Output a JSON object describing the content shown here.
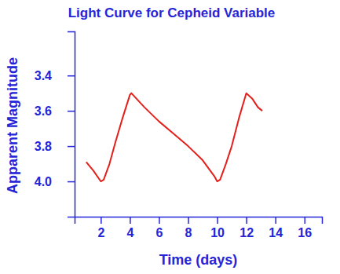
{
  "chart_data": {
    "type": "line",
    "title": "Light Curve for Cepheid Variable",
    "x_label": "Time (days)",
    "y_label": "Apparent Magnitude",
    "x": [
      1.0,
      1.5,
      2.0,
      2.2,
      2.6,
      3.0,
      3.5,
      4.0,
      4.1,
      5.0,
      6.0,
      7.0,
      8.0,
      9.0,
      9.8,
      10.0,
      10.2,
      10.6,
      11.0,
      11.5,
      12.0,
      12.4,
      12.8,
      13.1
    ],
    "values": [
      3.89,
      3.94,
      4.0,
      3.99,
      3.9,
      3.78,
      3.64,
      3.51,
      3.5,
      3.58,
      3.66,
      3.73,
      3.8,
      3.88,
      3.97,
      4.0,
      3.99,
      3.9,
      3.8,
      3.64,
      3.5,
      3.53,
      3.58,
      3.6
    ],
    "color": "#e3201b",
    "xlim": [
      0.2,
      17.2
    ],
    "ylim": [
      4.2,
      3.15
    ],
    "xticks": [
      2,
      4,
      6,
      8,
      10,
      12,
      14,
      16
    ],
    "yticks": [
      3.4,
      3.6,
      3.8,
      {
        "value": 4,
        "label": "4.0"
      }
    ],
    "grid": false
  }
}
